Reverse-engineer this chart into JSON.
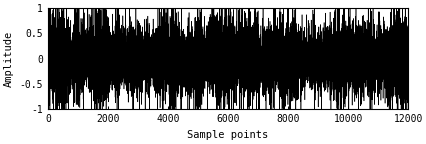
{
  "title": "",
  "xlabel": "Sample points",
  "ylabel": "Amplitude",
  "xlim": [
    0,
    12000
  ],
  "ylim": [
    -1,
    1
  ],
  "xticks": [
    0,
    2000,
    4000,
    6000,
    8000,
    10000,
    12000
  ],
  "yticks": [
    -1,
    -0.5,
    0,
    0.5,
    1
  ],
  "n_samples": 12000,
  "line_color": "#000000",
  "line_width": 0.4,
  "background_color": "#ffffff",
  "seed": 7,
  "base_amp": 0.22,
  "spike_prob": 0.04,
  "spike_amp": 0.55,
  "mod_amp": 0.06,
  "mod_freq": 0.00045
}
